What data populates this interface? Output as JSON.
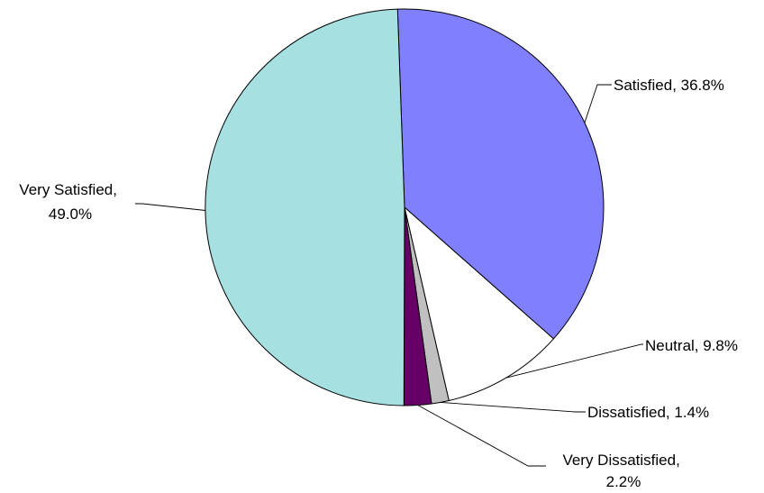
{
  "chart_data": {
    "type": "pie",
    "title": "",
    "start_angle_deg": -92,
    "direction": "clockwise",
    "legend": "none",
    "slices": [
      {
        "label": "Satisfied",
        "value": 36.8,
        "display": "Satisfied, 36.8%",
        "color": "#8080ff"
      },
      {
        "label": "Neutral",
        "value": 9.8,
        "display": "Neutral, 9.8%",
        "color": "#ffffff"
      },
      {
        "label": "Dissatisfied",
        "value": 1.4,
        "display": "Dissatisfied, 1.4%",
        "color": "#c0c0c0"
      },
      {
        "label": "Very Dissatisfied",
        "value": 2.2,
        "display_lines": [
          "Very Dissatisfied,",
          "2.2%"
        ],
        "color": "#660066"
      },
      {
        "label": "Very Satisfied",
        "value": 49.0,
        "display_lines": [
          "Very Satisfied,",
          "49.0%"
        ],
        "color": "#a6e0e0"
      }
    ]
  }
}
